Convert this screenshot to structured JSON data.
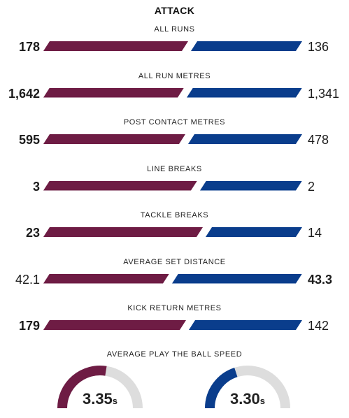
{
  "section_title": "ATTACK",
  "colors": {
    "home": "#6e1c44",
    "away": "#0a3d8c",
    "track": "#dddddd"
  },
  "stats": [
    {
      "label": "ALL RUNS",
      "home": "178",
      "away": "136",
      "home_value": 178,
      "away_value": 136,
      "lead": "home"
    },
    {
      "label": "ALL RUN METRES",
      "home": "1,642",
      "away": "1,341",
      "home_value": 1642,
      "away_value": 1341,
      "lead": "home"
    },
    {
      "label": "POST CONTACT METRES",
      "home": "595",
      "away": "478",
      "home_value": 595,
      "away_value": 478,
      "lead": "home"
    },
    {
      "label": "LINE BREAKS",
      "home": "3",
      "away": "2",
      "home_value": 3,
      "away_value": 2,
      "lead": "home"
    },
    {
      "label": "TACKLE BREAKS",
      "home": "23",
      "away": "14",
      "home_value": 23,
      "away_value": 14,
      "lead": "home"
    },
    {
      "label": "AVERAGE SET DISTANCE",
      "home": "42.1",
      "away": "43.3",
      "home_value": 42.1,
      "away_value": 43.3,
      "lead": "away"
    },
    {
      "label": "KICK RETURN METRES",
      "home": "179",
      "away": "142",
      "home_value": 179,
      "away_value": 142,
      "lead": "home"
    }
  ],
  "play_the_ball": {
    "title": "AVERAGE PLAY THE BALL SPEED",
    "home": {
      "value": "3.35",
      "unit": "s",
      "fill": 0.55
    },
    "away": {
      "value": "3.30",
      "unit": "s",
      "fill": 0.4
    }
  }
}
